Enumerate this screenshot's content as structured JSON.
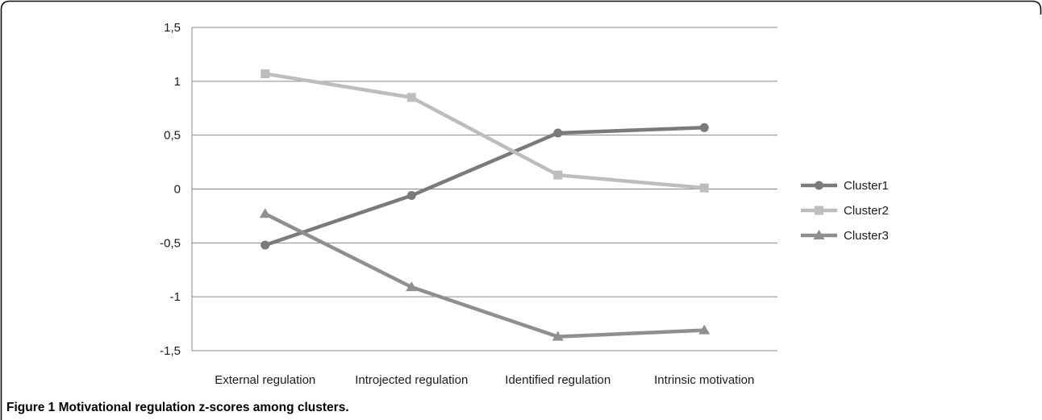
{
  "caption": {
    "label": "Figure 1",
    "text": "Motivational regulation z-scores among clusters."
  },
  "chart_data": {
    "type": "line",
    "categories": [
      "External regulation",
      "Introjected regulation",
      "Identified regulation",
      "Intrinsic motivation"
    ],
    "ylim": [
      -1.5,
      1.5
    ],
    "yticks": [
      1.5,
      1,
      0.5,
      0,
      -0.5,
      -1,
      -1.5
    ],
    "ytick_labels": [
      "1,5",
      "1",
      "0,5",
      "0",
      "-0,5",
      "-1",
      "-1,5"
    ],
    "grid": true,
    "legend_position": "right",
    "series": [
      {
        "name": "Cluster1",
        "values": [
          -0.52,
          -0.06,
          0.52,
          0.57
        ],
        "color": "#7a7a7a",
        "marker": "circle"
      },
      {
        "name": "Cluster2",
        "values": [
          1.07,
          0.85,
          0.13,
          0.01
        ],
        "color": "#bdbdbd",
        "marker": "square"
      },
      {
        "name": "Cluster3",
        "values": [
          -0.23,
          -0.91,
          -1.37,
          -1.31
        ],
        "color": "#8f8f8f",
        "marker": "triangle"
      }
    ]
  }
}
